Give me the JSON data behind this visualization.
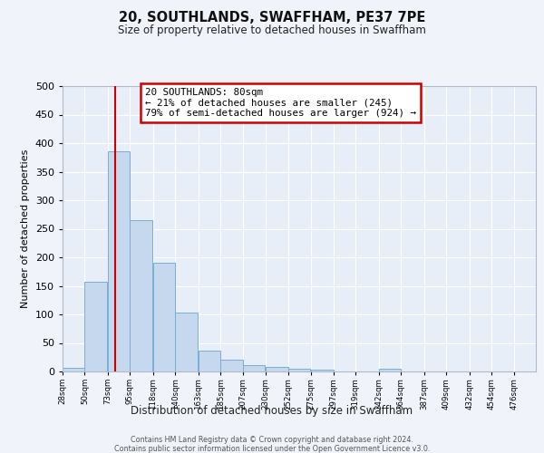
{
  "title": "20, SOUTHLANDS, SWAFFHAM, PE37 7PE",
  "subtitle": "Size of property relative to detached houses in Swaffham",
  "xlabel": "Distribution of detached houses by size in Swaffham",
  "ylabel": "Number of detached properties",
  "bin_labels": [
    "28sqm",
    "50sqm",
    "73sqm",
    "95sqm",
    "118sqm",
    "140sqm",
    "163sqm",
    "185sqm",
    "207sqm",
    "230sqm",
    "252sqm",
    "275sqm",
    "297sqm",
    "319sqm",
    "342sqm",
    "364sqm",
    "387sqm",
    "409sqm",
    "432sqm",
    "454sqm",
    "476sqm"
  ],
  "bar_values": [
    6,
    157,
    385,
    265,
    190,
    103,
    36,
    21,
    11,
    8,
    5,
    3,
    0,
    0,
    5,
    0,
    0,
    0,
    0,
    0,
    0
  ],
  "bar_color": "#c5d8ed",
  "bar_edge_color": "#7aaed6",
  "background_color": "#f0f4fa",
  "plot_bg_color": "#e8eef8",
  "vline_x": 80,
  "vline_color": "#cc0000",
  "ylim": [
    0,
    500
  ],
  "yticks": [
    0,
    50,
    100,
    150,
    200,
    250,
    300,
    350,
    400,
    450,
    500
  ],
  "annotation_title": "20 SOUTHLANDS: 80sqm",
  "annotation_line1": "← 21% of detached houses are smaller (245)",
  "annotation_line2": "79% of semi-detached houses are larger (924) →",
  "annotation_box_color": "#ffffff",
  "annotation_border_color": "#cc0000",
  "footer_line1": "Contains HM Land Registry data © Crown copyright and database right 2024.",
  "footer_line2": "Contains public sector information licensed under the Open Government Licence v3.0.",
  "bin_width": 22
}
